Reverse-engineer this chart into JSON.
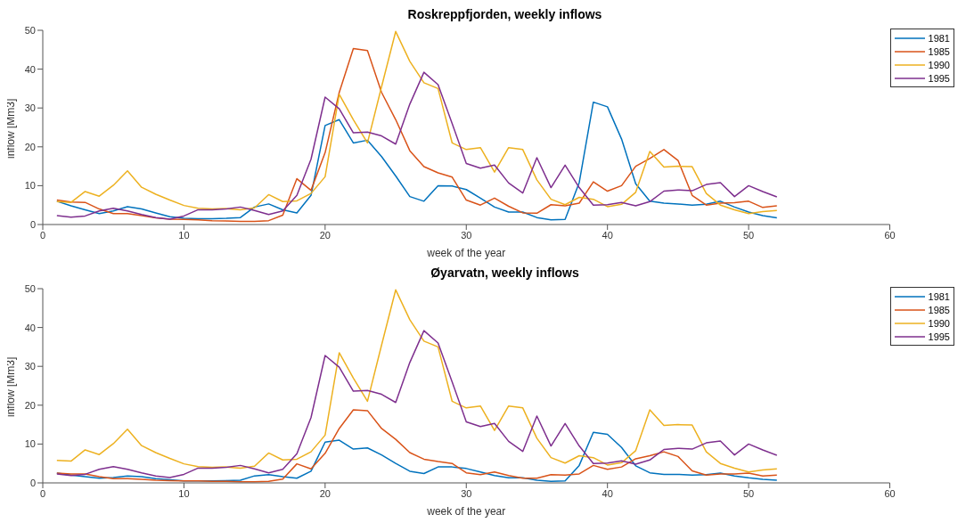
{
  "chart_data": [
    {
      "type": "line",
      "title": "Roskreppfjorden, weekly inflows",
      "xlabel": "week of the year",
      "ylabel": "inflow [Mm3]",
      "x": [
        1,
        2,
        3,
        4,
        5,
        6,
        7,
        8,
        9,
        10,
        11,
        12,
        13,
        14,
        15,
        16,
        17,
        18,
        19,
        20,
        21,
        22,
        23,
        24,
        25,
        26,
        27,
        28,
        29,
        30,
        31,
        32,
        33,
        34,
        35,
        36,
        37,
        38,
        39,
        40,
        41,
        42,
        43,
        44,
        45,
        46,
        47,
        48,
        49,
        50,
        51,
        52
      ],
      "xlim": [
        0,
        60
      ],
      "xticks": [
        0,
        10,
        20,
        30,
        40,
        50,
        60
      ],
      "ylim": [
        0,
        50
      ],
      "yticks": [
        0,
        10,
        20,
        30,
        40,
        50
      ],
      "grid": false,
      "legend": "top right",
      "series": [
        {
          "name": "1981",
          "color": "#0072bd",
          "values": [
            6,
            4.8,
            3.8,
            2.8,
            3.5,
            4.6,
            4,
            3,
            2,
            1.6,
            1.5,
            1.5,
            1.6,
            1.8,
            4.5,
            5.3,
            3.8,
            3,
            7.5,
            25.5,
            27,
            21,
            21.7,
            17.5,
            12.5,
            7.2,
            6,
            10,
            9.9,
            9,
            6.8,
            4.5,
            3.2,
            3.2,
            1.8,
            1.2,
            1.3,
            10.8,
            31.5,
            30.3,
            22,
            10.5,
            6,
            5.5,
            5.3,
            5,
            5.2,
            6,
            4.5,
            3.2,
            2.3,
            1.7
          ]
        },
        {
          "name": "1985",
          "color": "#d95319",
          "values": [
            6.3,
            5.8,
            5.7,
            4,
            2.8,
            2.8,
            2.3,
            1.7,
            1.4,
            1.3,
            1.2,
            1,
            0.9,
            0.8,
            0.8,
            1,
            2.4,
            11.8,
            8.8,
            18.5,
            34,
            45.3,
            44.8,
            34,
            27,
            19,
            14.9,
            13.3,
            12.2,
            6.3,
            5,
            6.8,
            4.7,
            3,
            2.9,
            5.1,
            4.8,
            5.5,
            11,
            8.6,
            10,
            15,
            17,
            19.3,
            16.5,
            7.5,
            5,
            5.5,
            5.6,
            6,
            4.4,
            4.8
          ]
        },
        {
          "name": "1990",
          "color": "#edb120",
          "values": [
            5.9,
            5.7,
            8.5,
            7.3,
            10.1,
            13.8,
            9.6,
            7.8,
            6.3,
            4.9,
            4.2,
            4,
            4.1,
            3.8,
            4.3,
            7.7,
            5.9,
            6.1,
            8,
            12.3,
            33.5,
            27,
            21,
            35.5,
            49.7,
            42,
            36.5,
            35,
            21,
            19.3,
            19.8,
            13.5,
            19.8,
            19.3,
            11.5,
            6.5,
            5.1,
            7,
            6.5,
            4.6,
            5.2,
            8.3,
            18.8,
            14.8,
            15,
            14.9,
            8,
            5,
            3.8,
            2.8,
            3.3,
            3.6
          ]
        },
        {
          "name": "1995",
          "color": "#7e2f8e",
          "values": [
            2.3,
            1.9,
            2.2,
            3.5,
            4.2,
            3.5,
            2.6,
            1.8,
            1.4,
            2.2,
            3.8,
            3.8,
            4,
            4.5,
            3.6,
            2.6,
            3.5,
            7.5,
            16.8,
            32.8,
            29.8,
            23.6,
            23.8,
            22.8,
            20.7,
            31,
            39.2,
            36,
            26,
            15.7,
            14.5,
            15.3,
            10.7,
            8.1,
            17.2,
            9.5,
            15.3,
            9.5,
            5,
            5.1,
            5.7,
            4.8,
            5.9,
            8.6,
            8.9,
            8.7,
            10.3,
            10.8,
            7.2,
            10,
            8.5,
            7.1
          ]
        }
      ]
    },
    {
      "type": "line",
      "title": "Øyarvatn, weekly inflows",
      "xlabel": "week of the year",
      "ylabel": "inflow [Mm3]",
      "x": [
        1,
        2,
        3,
        4,
        5,
        6,
        7,
        8,
        9,
        10,
        11,
        12,
        13,
        14,
        15,
        16,
        17,
        18,
        19,
        20,
        21,
        22,
        23,
        24,
        25,
        26,
        27,
        28,
        29,
        30,
        31,
        32,
        33,
        34,
        35,
        36,
        37,
        38,
        39,
        40,
        41,
        42,
        43,
        44,
        45,
        46,
        47,
        48,
        49,
        50,
        51,
        52
      ],
      "xlim": [
        0,
        60
      ],
      "xticks": [
        0,
        10,
        20,
        30,
        40,
        50,
        60
      ],
      "ylim": [
        0,
        50
      ],
      "yticks": [
        0,
        10,
        20,
        30,
        40,
        50
      ],
      "grid": false,
      "legend": "top right",
      "series": [
        {
          "name": "1981",
          "color": "#0072bd",
          "values": [
            2.5,
            2,
            1.6,
            1.2,
            1.4,
            1.8,
            1.6,
            1.1,
            0.8,
            0.5,
            0.5,
            0.5,
            0.6,
            0.7,
            1.8,
            2.1,
            1.6,
            1.2,
            3,
            10.5,
            11,
            8.7,
            9,
            7.2,
            5,
            3,
            2.4,
            4.1,
            4.1,
            3.7,
            2.8,
            1.9,
            1.3,
            1.3,
            0.7,
            0.4,
            0.5,
            4.5,
            13,
            12.5,
            9.1,
            4.4,
            2.6,
            2.2,
            2.2,
            2,
            2.1,
            2.5,
            1.8,
            1.3,
            0.9,
            0.7
          ]
        },
        {
          "name": "1985",
          "color": "#d95319",
          "values": [
            2.5,
            2.3,
            2.3,
            1.6,
            1.1,
            1.1,
            0.9,
            0.7,
            0.6,
            0.5,
            0.5,
            0.4,
            0.4,
            0.3,
            0.3,
            0.4,
            1,
            4.9,
            3.6,
            7.6,
            14,
            18.8,
            18.6,
            14,
            11.2,
            7.8,
            6.1,
            5.5,
            5,
            2.6,
            2.1,
            2.8,
            1.9,
            1.2,
            1.2,
            2.1,
            2,
            2.3,
            4.5,
            3.5,
            4.1,
            6.2,
            7,
            8,
            6.8,
            3.1,
            2,
            2.3,
            2.3,
            2.5,
            1.8,
            2
          ]
        },
        {
          "name": "1990",
          "color": "#edb120",
          "values": [
            5.8,
            5.6,
            8.5,
            7.3,
            10.1,
            13.8,
            9.6,
            7.8,
            6.3,
            4.9,
            4.2,
            4,
            4.1,
            3.8,
            4.3,
            7.7,
            5.9,
            6.1,
            8,
            12.3,
            33.5,
            27,
            21,
            35.5,
            49.7,
            42,
            36.5,
            35,
            21,
            19.3,
            19.8,
            13.5,
            19.8,
            19.3,
            11.5,
            6.5,
            5.1,
            7,
            6.5,
            4.6,
            5.2,
            8.3,
            18.8,
            14.8,
            15,
            14.9,
            8,
            5,
            3.8,
            2.8,
            3.3,
            3.6
          ]
        },
        {
          "name": "1995",
          "color": "#7e2f8e",
          "values": [
            2.3,
            1.9,
            2.2,
            3.5,
            4.2,
            3.5,
            2.6,
            1.8,
            1.4,
            2.2,
            3.8,
            3.8,
            4,
            4.5,
            3.6,
            2.6,
            3.5,
            7.5,
            16.8,
            32.8,
            29.8,
            23.6,
            23.8,
            22.8,
            20.7,
            31,
            39.2,
            36,
            26,
            15.7,
            14.5,
            15.3,
            10.7,
            8.1,
            17.2,
            9.5,
            15.3,
            9.5,
            5,
            5.1,
            5.7,
            4.8,
            5.9,
            8.6,
            8.9,
            8.7,
            10.3,
            10.8,
            7.2,
            10,
            8.5,
            7.1
          ]
        }
      ]
    }
  ]
}
